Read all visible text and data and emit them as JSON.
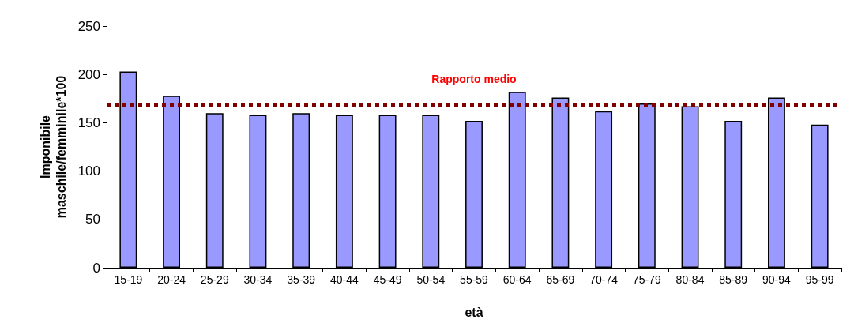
{
  "chart_data": {
    "type": "bar",
    "xlabel": "età",
    "ylabel": "Imponibile\nmaschile/femminile*100",
    "categories": [
      "15-19",
      "20-24",
      "25-29",
      "30-34",
      "35-39",
      "40-44",
      "45-49",
      "50-54",
      "55-59",
      "60-64",
      "65-69",
      "70-74",
      "75-79",
      "80-84",
      "85-89",
      "90-94",
      "95-99"
    ],
    "values": [
      203,
      178,
      160,
      158,
      160,
      158,
      158,
      158,
      152,
      182,
      176,
      162,
      170,
      167,
      152,
      176,
      148
    ],
    "color": "#9999ff",
    "ylim": [
      0,
      250
    ],
    "yticks": [
      0,
      50,
      100,
      150,
      200,
      250
    ],
    "grid": false,
    "ref_lines": [
      {
        "axis": "y",
        "value": 168,
        "label": "Rapporto medio",
        "color": "#800000",
        "line_style": "dotted"
      }
    ]
  }
}
